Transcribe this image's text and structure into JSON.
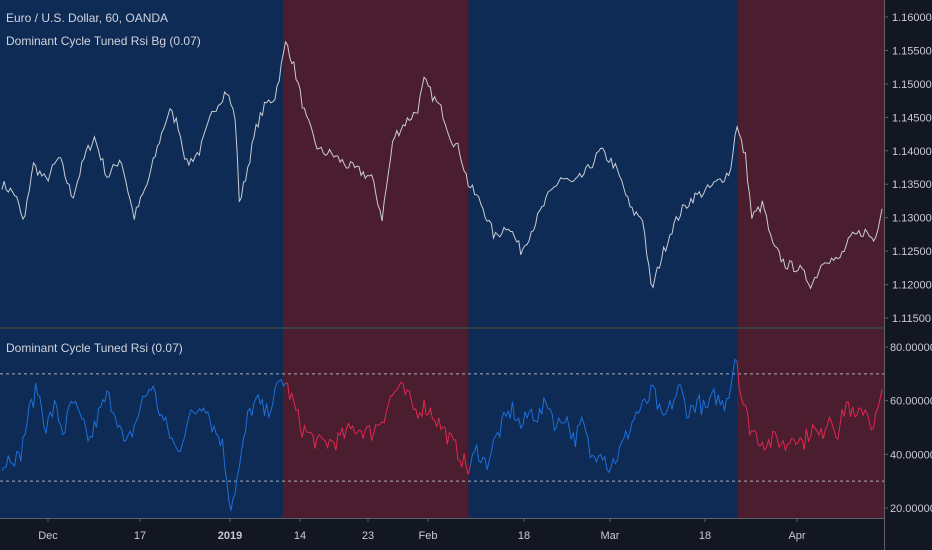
{
  "header": {
    "symbol_line": "Euro / U.S. Dollar, 60, OANDA",
    "indicator_bg_label": "Dominant Cycle Tuned Rsi Bg (0.07)",
    "indicator_label": "Dominant Cycle Tuned Rsi (0.07)"
  },
  "colors": {
    "background": "#131722",
    "bull_bg": "#0d2b55",
    "bear_bg": "#4a1d2f",
    "price_line": "#c9ccd3",
    "rsi_bull": "#1e6fd9",
    "rsi_bear": "#e0284f",
    "level_lines": "#c9ccd3"
  },
  "chart_data": [
    {
      "type": "line",
      "title": "Euro / U.S. Dollar, 60, OANDA",
      "y_ticks": [
        "1.16000",
        "1.15500",
        "1.15000",
        "1.14500",
        "1.14000",
        "1.13500",
        "1.13000",
        "1.12500",
        "1.12000",
        "1.11500"
      ],
      "ylim": [
        1.1138,
        1.1618
      ],
      "x_ticks": [
        "Dec",
        "17",
        "2019",
        "14",
        "23",
        "Feb",
        "18",
        "Mar",
        "18",
        "Apr"
      ],
      "x_ticks_bold": [
        "2019"
      ],
      "regimes": [
        {
          "state": "bull",
          "from": 0.0,
          "to": 0.32
        },
        {
          "state": "bear",
          "from": 0.32,
          "to": 0.53
        },
        {
          "state": "bull",
          "from": 0.53,
          "to": 0.834
        },
        {
          "state": "bear",
          "from": 0.834,
          "to": 1.0
        }
      ],
      "anchors": [
        [
          0.0,
          1.135
        ],
        [
          0.015,
          1.1335
        ],
        [
          0.025,
          1.129
        ],
        [
          0.035,
          1.138
        ],
        [
          0.05,
          1.1355
        ],
        [
          0.065,
          1.139
        ],
        [
          0.08,
          1.133
        ],
        [
          0.095,
          1.1395
        ],
        [
          0.105,
          1.142
        ],
        [
          0.12,
          1.136
        ],
        [
          0.135,
          1.139
        ],
        [
          0.15,
          1.13
        ],
        [
          0.165,
          1.135
        ],
        [
          0.18,
          1.142
        ],
        [
          0.19,
          1.146
        ],
        [
          0.2,
          1.144
        ],
        [
          0.21,
          1.138
        ],
        [
          0.225,
          1.14
        ],
        [
          0.24,
          1.146
        ],
        [
          0.255,
          1.149
        ],
        [
          0.265,
          1.145
        ],
        [
          0.27,
          1.132
        ],
        [
          0.28,
          1.138
        ],
        [
          0.29,
          1.144
        ],
        [
          0.3,
          1.147
        ],
        [
          0.31,
          1.148
        ],
        [
          0.318,
          1.153
        ],
        [
          0.323,
          1.1565
        ],
        [
          0.332,
          1.1525
        ],
        [
          0.345,
          1.145
        ],
        [
          0.36,
          1.14
        ],
        [
          0.375,
          1.1395
        ],
        [
          0.39,
          1.138
        ],
        [
          0.405,
          1.137
        ],
        [
          0.42,
          1.136
        ],
        [
          0.432,
          1.13
        ],
        [
          0.445,
          1.142
        ],
        [
          0.46,
          1.1445
        ],
        [
          0.472,
          1.146
        ],
        [
          0.48,
          1.1505
        ],
        [
          0.49,
          1.148
        ],
        [
          0.5,
          1.146
        ],
        [
          0.51,
          1.142
        ],
        [
          0.52,
          1.14
        ],
        [
          0.53,
          1.135
        ],
        [
          0.545,
          1.132
        ],
        [
          0.56,
          1.127
        ],
        [
          0.575,
          1.129
        ],
        [
          0.59,
          1.125
        ],
        [
          0.605,
          1.129
        ],
        [
          0.62,
          1.133
        ],
        [
          0.635,
          1.136
        ],
        [
          0.65,
          1.135
        ],
        [
          0.665,
          1.137
        ],
        [
          0.68,
          1.14
        ],
        [
          0.695,
          1.138
        ],
        [
          0.705,
          1.135
        ],
        [
          0.715,
          1.131
        ],
        [
          0.728,
          1.13
        ],
        [
          0.738,
          1.119
        ],
        [
          0.748,
          1.1235
        ],
        [
          0.76,
          1.128
        ],
        [
          0.772,
          1.131
        ],
        [
          0.785,
          1.133
        ],
        [
          0.8,
          1.134
        ],
        [
          0.815,
          1.1355
        ],
        [
          0.828,
          1.137
        ],
        [
          0.834,
          1.144
        ],
        [
          0.845,
          1.139
        ],
        [
          0.852,
          1.13
        ],
        [
          0.865,
          1.132
        ],
        [
          0.875,
          1.126
        ],
        [
          0.89,
          1.123
        ],
        [
          0.905,
          1.1225
        ],
        [
          0.92,
          1.12
        ],
        [
          0.935,
          1.124
        ],
        [
          0.95,
          1.1235
        ],
        [
          0.965,
          1.127
        ],
        [
          0.98,
          1.128
        ],
        [
          0.992,
          1.1265
        ],
        [
          1.0,
          1.132
        ]
      ]
    },
    {
      "type": "line",
      "title": "Dominant Cycle Tuned Rsi (0.07)",
      "y_ticks": [
        "80.00000",
        "60.00000",
        "40.00000",
        "20.00000"
      ],
      "ylim": [
        17.5,
        86.5
      ],
      "levels": [
        70,
        30
      ],
      "anchors": [
        [
          0.0,
          35
        ],
        [
          0.01,
          40
        ],
        [
          0.02,
          38
        ],
        [
          0.03,
          55
        ],
        [
          0.04,
          65
        ],
        [
          0.05,
          50
        ],
        [
          0.06,
          58
        ],
        [
          0.07,
          48
        ],
        [
          0.08,
          60
        ],
        [
          0.09,
          52
        ],
        [
          0.1,
          45
        ],
        [
          0.11,
          55
        ],
        [
          0.12,
          62
        ],
        [
          0.13,
          55
        ],
        [
          0.14,
          42
        ],
        [
          0.15,
          50
        ],
        [
          0.16,
          60
        ],
        [
          0.17,
          66
        ],
        [
          0.18,
          55
        ],
        [
          0.19,
          48
        ],
        [
          0.2,
          40
        ],
        [
          0.21,
          52
        ],
        [
          0.22,
          56
        ],
        [
          0.23,
          60
        ],
        [
          0.24,
          50
        ],
        [
          0.25,
          45
        ],
        [
          0.26,
          20
        ],
        [
          0.27,
          35
        ],
        [
          0.28,
          55
        ],
        [
          0.29,
          60
        ],
        [
          0.3,
          55
        ],
        [
          0.31,
          62
        ],
        [
          0.318,
          68
        ],
        [
          0.323,
          66
        ],
        [
          0.33,
          60
        ],
        [
          0.34,
          50
        ],
        [
          0.36,
          44
        ],
        [
          0.38,
          45
        ],
        [
          0.4,
          50
        ],
        [
          0.42,
          48
        ],
        [
          0.435,
          55
        ],
        [
          0.44,
          60
        ],
        [
          0.45,
          65
        ],
        [
          0.46,
          62
        ],
        [
          0.47,
          56
        ],
        [
          0.48,
          58
        ],
        [
          0.49,
          55
        ],
        [
          0.5,
          50
        ],
        [
          0.51,
          45
        ],
        [
          0.52,
          40
        ],
        [
          0.53,
          34
        ],
        [
          0.54,
          42
        ],
        [
          0.55,
          36
        ],
        [
          0.56,
          45
        ],
        [
          0.57,
          52
        ],
        [
          0.58,
          57
        ],
        [
          0.59,
          50
        ],
        [
          0.6,
          56
        ],
        [
          0.61,
          54
        ],
        [
          0.62,
          60
        ],
        [
          0.63,
          50
        ],
        [
          0.64,
          55
        ],
        [
          0.65,
          45
        ],
        [
          0.66,
          52
        ],
        [
          0.67,
          38
        ],
        [
          0.68,
          43
        ],
        [
          0.69,
          35
        ],
        [
          0.7,
          40
        ],
        [
          0.71,
          47
        ],
        [
          0.72,
          55
        ],
        [
          0.73,
          58
        ],
        [
          0.74,
          64
        ],
        [
          0.75,
          52
        ],
        [
          0.76,
          58
        ],
        [
          0.77,
          65
        ],
        [
          0.78,
          55
        ],
        [
          0.79,
          60
        ],
        [
          0.8,
          56
        ],
        [
          0.81,
          62
        ],
        [
          0.82,
          58
        ],
        [
          0.828,
          66
        ],
        [
          0.834,
          79
        ],
        [
          0.84,
          62
        ],
        [
          0.85,
          50
        ],
        [
          0.86,
          46
        ],
        [
          0.87,
          44
        ],
        [
          0.88,
          46
        ],
        [
          0.89,
          43
        ],
        [
          0.9,
          48
        ],
        [
          0.91,
          44
        ],
        [
          0.92,
          50
        ],
        [
          0.93,
          46
        ],
        [
          0.94,
          55
        ],
        [
          0.95,
          48
        ],
        [
          0.96,
          60
        ],
        [
          0.97,
          52
        ],
        [
          0.98,
          58
        ],
        [
          0.99,
          50
        ],
        [
          1.0,
          62
        ]
      ]
    }
  ]
}
